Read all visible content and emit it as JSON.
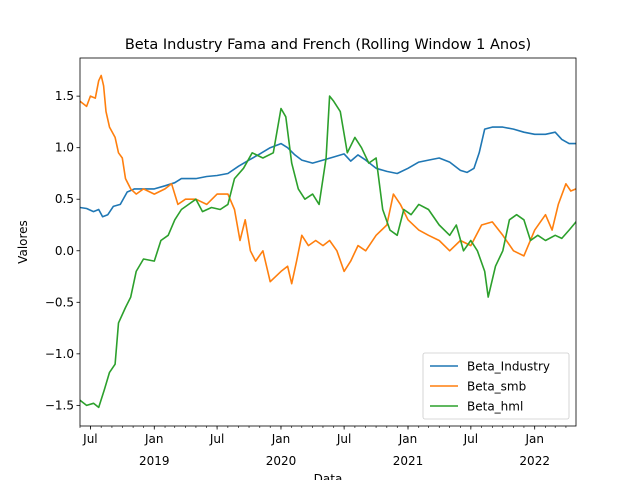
{
  "chart_data": {
    "type": "line",
    "title": "Beta Industry Fama and French (Rolling Window 1 Anos)",
    "xlabel": "Data",
    "ylabel": "Valores",
    "x_range": [
      "2018-06-01",
      "2022-04-30"
    ],
    "ylim": [
      -1.7,
      1.87
    ],
    "yticks": [
      1.5,
      1.0,
      0.5,
      0.0,
      -0.5,
      -1.0,
      -1.5
    ],
    "ytick_labels": [
      "1.5",
      "1.0",
      "0.5",
      "0.0",
      "−0.5",
      "−1.0",
      "−1.5"
    ],
    "xticks": [
      {
        "date": "2018-07-01",
        "label": "Jul",
        "year": ""
      },
      {
        "date": "2019-01-01",
        "label": "Jan",
        "year": "2019"
      },
      {
        "date": "2019-07-01",
        "label": "Jul",
        "year": ""
      },
      {
        "date": "2020-01-01",
        "label": "Jan",
        "year": "2020"
      },
      {
        "date": "2020-07-01",
        "label": "Jul",
        "year": ""
      },
      {
        "date": "2021-01-01",
        "label": "Jan",
        "year": "2021"
      },
      {
        "date": "2021-07-01",
        "label": "Jul",
        "year": ""
      },
      {
        "date": "2022-01-01",
        "label": "Jan",
        "year": "2022"
      }
    ],
    "grid": false,
    "legend_position": "lower-right",
    "series": [
      {
        "name": "Beta_Industry",
        "color": "#1f77b4",
        "points": [
          [
            "2018-06-01",
            0.42
          ],
          [
            "2018-06-20",
            0.41
          ],
          [
            "2018-07-10",
            0.38
          ],
          [
            "2018-07-25",
            0.4
          ],
          [
            "2018-08-05",
            0.33
          ],
          [
            "2018-08-20",
            0.35
          ],
          [
            "2018-09-05",
            0.43
          ],
          [
            "2018-09-25",
            0.45
          ],
          [
            "2018-10-15",
            0.57
          ],
          [
            "2018-11-05",
            0.6
          ],
          [
            "2018-12-01",
            0.6
          ],
          [
            "2019-01-01",
            0.6
          ],
          [
            "2019-02-01",
            0.63
          ],
          [
            "2019-03-01",
            0.66
          ],
          [
            "2019-03-20",
            0.7
          ],
          [
            "2019-05-01",
            0.7
          ],
          [
            "2019-06-01",
            0.72
          ],
          [
            "2019-07-01",
            0.73
          ],
          [
            "2019-08-01",
            0.75
          ],
          [
            "2019-09-01",
            0.82
          ],
          [
            "2019-10-01",
            0.88
          ],
          [
            "2019-11-01",
            0.94
          ],
          [
            "2019-12-01",
            1.0
          ],
          [
            "2020-01-01",
            1.04
          ],
          [
            "2020-01-20",
            1.0
          ],
          [
            "2020-02-10",
            0.93
          ],
          [
            "2020-03-01",
            0.88
          ],
          [
            "2020-04-01",
            0.85
          ],
          [
            "2020-05-01",
            0.88
          ],
          [
            "2020-06-01",
            0.91
          ],
          [
            "2020-07-01",
            0.94
          ],
          [
            "2020-07-20",
            0.87
          ],
          [
            "2020-08-10",
            0.93
          ],
          [
            "2020-09-01",
            0.88
          ],
          [
            "2020-10-01",
            0.8
          ],
          [
            "2020-11-01",
            0.77
          ],
          [
            "2020-12-01",
            0.75
          ],
          [
            "2021-01-01",
            0.8
          ],
          [
            "2021-02-01",
            0.86
          ],
          [
            "2021-03-01",
            0.88
          ],
          [
            "2021-04-01",
            0.9
          ],
          [
            "2021-05-01",
            0.86
          ],
          [
            "2021-06-01",
            0.78
          ],
          [
            "2021-06-20",
            0.76
          ],
          [
            "2021-07-10",
            0.8
          ],
          [
            "2021-07-25",
            0.95
          ],
          [
            "2021-08-10",
            1.18
          ],
          [
            "2021-09-01",
            1.2
          ],
          [
            "2021-10-01",
            1.2
          ],
          [
            "2021-11-01",
            1.18
          ],
          [
            "2021-12-01",
            1.15
          ],
          [
            "2022-01-01",
            1.13
          ],
          [
            "2022-02-01",
            1.13
          ],
          [
            "2022-03-01",
            1.15
          ],
          [
            "2022-03-20",
            1.08
          ],
          [
            "2022-04-10",
            1.04
          ],
          [
            "2022-04-30",
            1.04
          ]
        ]
      },
      {
        "name": "Beta_smb",
        "color": "#ff7f0e",
        "points": [
          [
            "2018-06-01",
            1.45
          ],
          [
            "2018-06-20",
            1.4
          ],
          [
            "2018-07-01",
            1.5
          ],
          [
            "2018-07-15",
            1.48
          ],
          [
            "2018-07-25",
            1.65
          ],
          [
            "2018-08-01",
            1.7
          ],
          [
            "2018-08-08",
            1.6
          ],
          [
            "2018-08-15",
            1.35
          ],
          [
            "2018-08-25",
            1.2
          ],
          [
            "2018-09-10",
            1.1
          ],
          [
            "2018-09-20",
            0.95
          ],
          [
            "2018-10-01",
            0.9
          ],
          [
            "2018-10-10",
            0.7
          ],
          [
            "2018-10-25",
            0.6
          ],
          [
            "2018-11-10",
            0.55
          ],
          [
            "2018-12-01",
            0.6
          ],
          [
            "2019-01-01",
            0.55
          ],
          [
            "2019-02-01",
            0.6
          ],
          [
            "2019-02-20",
            0.65
          ],
          [
            "2019-03-10",
            0.45
          ],
          [
            "2019-04-01",
            0.5
          ],
          [
            "2019-05-01",
            0.5
          ],
          [
            "2019-06-01",
            0.45
          ],
          [
            "2019-07-01",
            0.55
          ],
          [
            "2019-08-01",
            0.55
          ],
          [
            "2019-08-20",
            0.4
          ],
          [
            "2019-09-05",
            0.1
          ],
          [
            "2019-09-20",
            0.3
          ],
          [
            "2019-10-05",
            0.0
          ],
          [
            "2019-10-20",
            -0.1
          ],
          [
            "2019-11-10",
            0.0
          ],
          [
            "2019-12-01",
            -0.3
          ],
          [
            "2020-01-01",
            -0.2
          ],
          [
            "2020-01-20",
            -0.15
          ],
          [
            "2020-02-01",
            -0.32
          ],
          [
            "2020-02-15",
            -0.1
          ],
          [
            "2020-03-01",
            0.15
          ],
          [
            "2020-03-20",
            0.05
          ],
          [
            "2020-04-10",
            0.1
          ],
          [
            "2020-05-01",
            0.05
          ],
          [
            "2020-05-20",
            0.1
          ],
          [
            "2020-06-10",
            0.0
          ],
          [
            "2020-07-01",
            -0.2
          ],
          [
            "2020-07-20",
            -0.1
          ],
          [
            "2020-08-10",
            0.05
          ],
          [
            "2020-09-01",
            0.0
          ],
          [
            "2020-10-01",
            0.15
          ],
          [
            "2020-11-01",
            0.25
          ],
          [
            "2020-11-20",
            0.55
          ],
          [
            "2020-12-10",
            0.45
          ],
          [
            "2021-01-01",
            0.3
          ],
          [
            "2021-02-01",
            0.2
          ],
          [
            "2021-03-01",
            0.15
          ],
          [
            "2021-04-01",
            0.1
          ],
          [
            "2021-05-01",
            0.0
          ],
          [
            "2021-06-01",
            0.1
          ],
          [
            "2021-07-01",
            0.05
          ],
          [
            "2021-08-01",
            0.25
          ],
          [
            "2021-09-01",
            0.28
          ],
          [
            "2021-10-01",
            0.15
          ],
          [
            "2021-11-01",
            0.0
          ],
          [
            "2021-12-01",
            -0.05
          ],
          [
            "2022-01-01",
            0.2
          ],
          [
            "2022-02-01",
            0.35
          ],
          [
            "2022-02-20",
            0.2
          ],
          [
            "2022-03-10",
            0.45
          ],
          [
            "2022-04-01",
            0.65
          ],
          [
            "2022-04-15",
            0.58
          ],
          [
            "2022-04-30",
            0.6
          ]
        ]
      },
      {
        "name": "Beta_hml",
        "color": "#2ca02c",
        "points": [
          [
            "2018-06-01",
            -1.45
          ],
          [
            "2018-06-20",
            -1.5
          ],
          [
            "2018-07-10",
            -1.48
          ],
          [
            "2018-07-25",
            -1.52
          ],
          [
            "2018-08-10",
            -1.35
          ],
          [
            "2018-08-25",
            -1.18
          ],
          [
            "2018-09-10",
            -1.1
          ],
          [
            "2018-09-20",
            -0.7
          ],
          [
            "2018-10-10",
            -0.55
          ],
          [
            "2018-10-25",
            -0.45
          ],
          [
            "2018-11-10",
            -0.2
          ],
          [
            "2018-12-01",
            -0.08
          ],
          [
            "2019-01-01",
            -0.1
          ],
          [
            "2019-01-20",
            0.1
          ],
          [
            "2019-02-10",
            0.15
          ],
          [
            "2019-03-01",
            0.3
          ],
          [
            "2019-03-20",
            0.4
          ],
          [
            "2019-04-10",
            0.45
          ],
          [
            "2019-05-01",
            0.5
          ],
          [
            "2019-05-20",
            0.38
          ],
          [
            "2019-06-15",
            0.42
          ],
          [
            "2019-07-10",
            0.4
          ],
          [
            "2019-08-01",
            0.45
          ],
          [
            "2019-08-20",
            0.7
          ],
          [
            "2019-09-15",
            0.8
          ],
          [
            "2019-10-10",
            0.95
          ],
          [
            "2019-11-10",
            0.9
          ],
          [
            "2019-12-10",
            0.95
          ],
          [
            "2020-01-01",
            1.38
          ],
          [
            "2020-01-15",
            1.3
          ],
          [
            "2020-02-01",
            0.85
          ],
          [
            "2020-02-20",
            0.6
          ],
          [
            "2020-03-10",
            0.5
          ],
          [
            "2020-04-01",
            0.55
          ],
          [
            "2020-04-20",
            0.45
          ],
          [
            "2020-05-10",
            0.9
          ],
          [
            "2020-05-20",
            1.5
          ],
          [
            "2020-06-01",
            1.45
          ],
          [
            "2020-06-20",
            1.35
          ],
          [
            "2020-07-10",
            0.95
          ],
          [
            "2020-08-01",
            1.1
          ],
          [
            "2020-08-20",
            1.0
          ],
          [
            "2020-09-10",
            0.85
          ],
          [
            "2020-10-01",
            0.9
          ],
          [
            "2020-10-20",
            0.4
          ],
          [
            "2020-11-10",
            0.2
          ],
          [
            "2020-12-01",
            0.15
          ],
          [
            "2020-12-20",
            0.4
          ],
          [
            "2021-01-10",
            0.35
          ],
          [
            "2021-02-01",
            0.45
          ],
          [
            "2021-03-01",
            0.4
          ],
          [
            "2021-04-01",
            0.25
          ],
          [
            "2021-05-01",
            0.15
          ],
          [
            "2021-05-20",
            0.25
          ],
          [
            "2021-06-10",
            0.0
          ],
          [
            "2021-07-01",
            0.1
          ],
          [
            "2021-07-20",
            0.0
          ],
          [
            "2021-08-10",
            -0.2
          ],
          [
            "2021-08-20",
            -0.45
          ],
          [
            "2021-09-10",
            -0.15
          ],
          [
            "2021-10-01",
            0.0
          ],
          [
            "2021-10-20",
            0.3
          ],
          [
            "2021-11-10",
            0.35
          ],
          [
            "2021-12-01",
            0.3
          ],
          [
            "2021-12-20",
            0.1
          ],
          [
            "2022-01-10",
            0.15
          ],
          [
            "2022-02-01",
            0.1
          ],
          [
            "2022-03-01",
            0.15
          ],
          [
            "2022-03-20",
            0.12
          ],
          [
            "2022-04-10",
            0.2
          ],
          [
            "2022-04-30",
            0.28
          ]
        ]
      }
    ]
  }
}
